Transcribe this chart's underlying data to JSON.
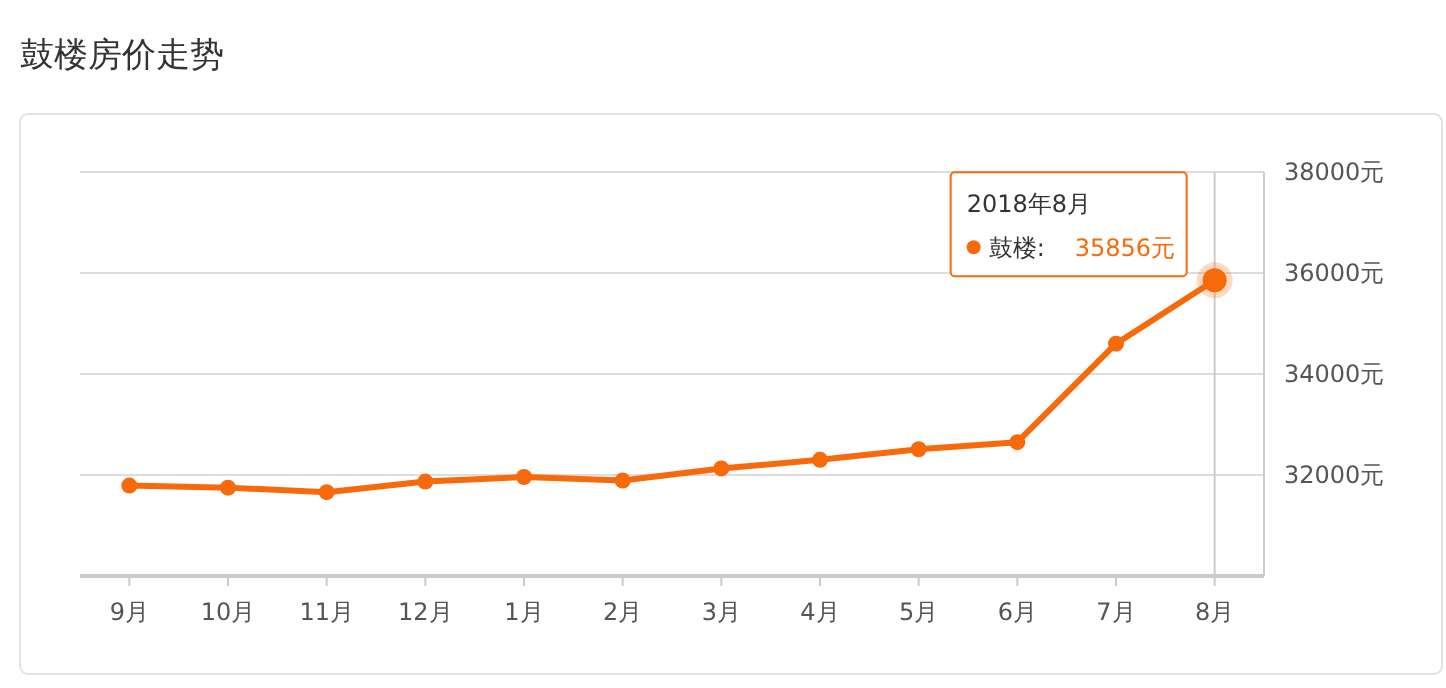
{
  "chart_data": {
    "type": "line",
    "title": "鼓楼房价走势",
    "categories": [
      "9月",
      "10月",
      "11月",
      "12月",
      "1月",
      "2月",
      "3月",
      "4月",
      "5月",
      "6月",
      "7月",
      "8月"
    ],
    "series": [
      {
        "name": "鼓楼:",
        "color": "#f76a0c",
        "values": [
          31790,
          31750,
          31660,
          31870,
          31960,
          31890,
          32130,
          32300,
          32510,
          32650,
          34600,
          35856
        ],
        "value_labels": [
          null,
          null,
          null,
          null,
          null,
          null,
          null,
          null,
          null,
          null,
          null,
          "35856元"
        ]
      }
    ],
    "ylim": [
      30000,
      38000
    ],
    "yticks": [
      {
        "value": 32000,
        "label": "32000元"
      },
      {
        "value": 34000,
        "label": "34000元"
      },
      {
        "value": 36000,
        "label": "36000元"
      },
      {
        "value": 38000,
        "label": "38000元"
      }
    ],
    "grid": "y",
    "marker": "circle",
    "line_style": "solid",
    "legend": "top right",
    "ref_lines": [
      {
        "axis": "x",
        "value": "8月",
        "color": "#cccccc"
      }
    ],
    "annotations": [
      "2018年8月"
    ]
  }
}
